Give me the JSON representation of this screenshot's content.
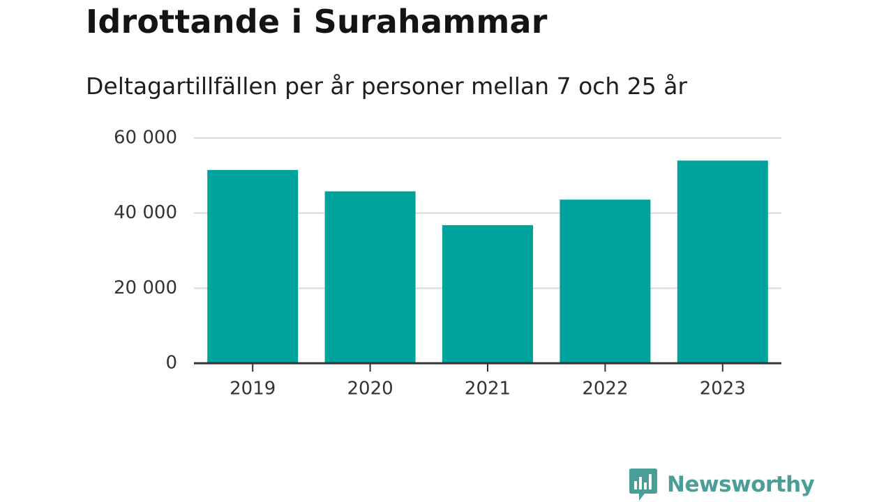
{
  "brand": {
    "name": "Newsworthy",
    "color": "#4b9e97"
  },
  "chart_data": {
    "type": "bar",
    "title": "Idrottande i Surahammar",
    "subtitle": "Deltagartillfällen per år personer mellan 7 och 25 år",
    "xlabel": "",
    "ylabel": "",
    "categories": [
      "2019",
      "2020",
      "2021",
      "2022",
      "2023"
    ],
    "values": [
      51500,
      45800,
      36800,
      43600,
      54000
    ],
    "ylim": [
      0,
      60000
    ],
    "yticks": [
      0,
      20000,
      40000,
      60000
    ],
    "ytick_labels": [
      "0",
      "20 000",
      "40 000",
      "60 000"
    ],
    "grid": true,
    "legend": "none",
    "bar_color": "#00a39b",
    "grid_color": "#d9d9d9",
    "axis_color": "#333333"
  }
}
